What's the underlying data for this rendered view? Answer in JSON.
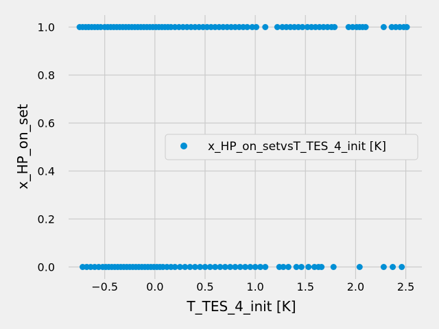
{
  "chart_data": {
    "type": "scatter",
    "xlabel": "T_TES_4_init [K]",
    "ylabel": "x_HP_on_set",
    "xlim": [
      -0.86,
      2.66
    ],
    "ylim": [
      -0.05,
      1.05
    ],
    "xticks": [
      -0.5,
      0.0,
      0.5,
      1.0,
      1.5,
      2.0,
      2.5
    ],
    "xtick_labels": [
      "−0.5",
      "0.0",
      "0.5",
      "1.0",
      "1.5",
      "2.0",
      "2.5"
    ],
    "yticks": [
      0.0,
      0.2,
      0.4,
      0.6,
      0.8,
      1.0
    ],
    "ytick_labels": [
      "0.0",
      "0.2",
      "0.4",
      "0.6",
      "0.8",
      "1.0"
    ],
    "grid": true,
    "legend_position": "center-right",
    "series": [
      {
        "name": "x_HP_on_setvsT_TES_4_init [K]",
        "color": "#008fd5",
        "points": [
          [
            -0.75,
            1
          ],
          [
            -0.72,
            1
          ],
          [
            -0.69,
            1
          ],
          [
            -0.66,
            1
          ],
          [
            -0.63,
            1
          ],
          [
            -0.6,
            1
          ],
          [
            -0.57,
            1
          ],
          [
            -0.54,
            1
          ],
          [
            -0.5,
            1
          ],
          [
            -0.47,
            1
          ],
          [
            -0.44,
            1
          ],
          [
            -0.41,
            1
          ],
          [
            -0.38,
            1
          ],
          [
            -0.35,
            1
          ],
          [
            -0.32,
            1
          ],
          [
            -0.29,
            1
          ],
          [
            -0.26,
            1
          ],
          [
            -0.23,
            1
          ],
          [
            -0.2,
            1
          ],
          [
            -0.17,
            1
          ],
          [
            -0.14,
            1
          ],
          [
            -0.11,
            1
          ],
          [
            -0.08,
            1
          ],
          [
            -0.05,
            1
          ],
          [
            -0.02,
            1
          ],
          [
            0.01,
            1
          ],
          [
            0.04,
            1
          ],
          [
            0.07,
            1
          ],
          [
            0.1,
            1
          ],
          [
            0.13,
            1
          ],
          [
            0.16,
            1
          ],
          [
            0.2,
            1
          ],
          [
            0.24,
            1
          ],
          [
            0.28,
            1
          ],
          [
            0.32,
            1
          ],
          [
            0.36,
            1
          ],
          [
            0.4,
            1
          ],
          [
            0.44,
            1
          ],
          [
            0.48,
            1
          ],
          [
            0.52,
            1
          ],
          [
            0.56,
            1
          ],
          [
            0.6,
            1
          ],
          [
            0.64,
            1
          ],
          [
            0.68,
            1
          ],
          [
            0.72,
            1
          ],
          [
            0.76,
            1
          ],
          [
            0.8,
            1
          ],
          [
            0.84,
            1
          ],
          [
            0.88,
            1
          ],
          [
            0.92,
            1
          ],
          [
            0.97,
            1
          ],
          [
            1.01,
            1
          ],
          [
            1.1,
            1
          ],
          [
            1.22,
            1
          ],
          [
            1.27,
            1
          ],
          [
            1.31,
            1
          ],
          [
            1.35,
            1
          ],
          [
            1.39,
            1
          ],
          [
            1.43,
            1
          ],
          [
            1.47,
            1
          ],
          [
            1.52,
            1
          ],
          [
            1.56,
            1
          ],
          [
            1.6,
            1
          ],
          [
            1.64,
            1
          ],
          [
            1.68,
            1
          ],
          [
            1.72,
            1
          ],
          [
            1.76,
            1
          ],
          [
            1.79,
            1
          ],
          [
            1.93,
            1
          ],
          [
            1.97,
            1
          ],
          [
            2.01,
            1
          ],
          [
            2.04,
            1
          ],
          [
            2.07,
            1
          ],
          [
            2.1,
            1
          ],
          [
            2.28,
            1
          ],
          [
            2.36,
            1
          ],
          [
            2.4,
            1
          ],
          [
            2.44,
            1
          ],
          [
            2.48,
            1
          ],
          [
            2.51,
            1
          ],
          [
            -0.72,
            0
          ],
          [
            -0.68,
            0
          ],
          [
            -0.64,
            0
          ],
          [
            -0.6,
            0
          ],
          [
            -0.56,
            0
          ],
          [
            -0.52,
            0
          ],
          [
            -0.49,
            0
          ],
          [
            -0.46,
            0
          ],
          [
            -0.43,
            0
          ],
          [
            -0.4,
            0
          ],
          [
            -0.37,
            0
          ],
          [
            -0.34,
            0
          ],
          [
            -0.31,
            0
          ],
          [
            -0.28,
            0
          ],
          [
            -0.25,
            0
          ],
          [
            -0.22,
            0
          ],
          [
            -0.19,
            0
          ],
          [
            -0.16,
            0
          ],
          [
            -0.13,
            0
          ],
          [
            -0.1,
            0
          ],
          [
            -0.07,
            0
          ],
          [
            -0.04,
            0
          ],
          [
            -0.01,
            0
          ],
          [
            0.02,
            0
          ],
          [
            0.05,
            0
          ],
          [
            0.08,
            0
          ],
          [
            0.12,
            0
          ],
          [
            0.16,
            0
          ],
          [
            0.2,
            0
          ],
          [
            0.25,
            0
          ],
          [
            0.3,
            0
          ],
          [
            0.35,
            0
          ],
          [
            0.4,
            0
          ],
          [
            0.45,
            0
          ],
          [
            0.5,
            0
          ],
          [
            0.55,
            0
          ],
          [
            0.6,
            0
          ],
          [
            0.65,
            0
          ],
          [
            0.7,
            0
          ],
          [
            0.75,
            0
          ],
          [
            0.8,
            0
          ],
          [
            0.85,
            0
          ],
          [
            0.9,
            0
          ],
          [
            0.95,
            0
          ],
          [
            1.0,
            0
          ],
          [
            1.05,
            0
          ],
          [
            1.1,
            0
          ],
          [
            1.24,
            0
          ],
          [
            1.28,
            0
          ],
          [
            1.33,
            0
          ],
          [
            1.41,
            0
          ],
          [
            1.46,
            0
          ],
          [
            1.53,
            0
          ],
          [
            1.59,
            0
          ],
          [
            1.63,
            0
          ],
          [
            1.66,
            0
          ],
          [
            1.78,
            0
          ],
          [
            2.04,
            0
          ],
          [
            2.28,
            0
          ],
          [
            2.37,
            0
          ],
          [
            2.46,
            0
          ]
        ]
      }
    ]
  }
}
